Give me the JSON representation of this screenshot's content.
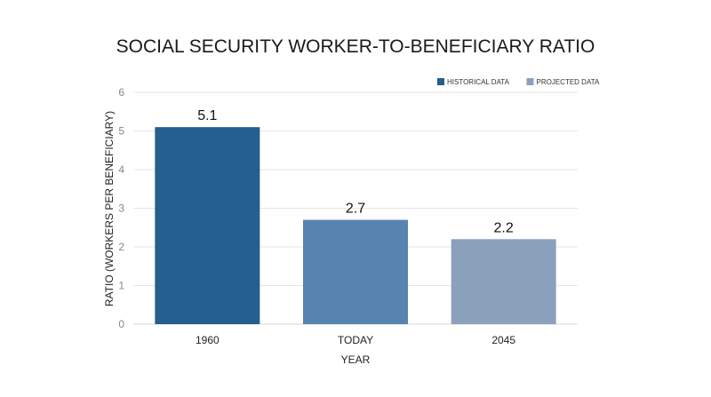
{
  "chart_data": {
    "type": "bar",
    "title": "SOCIAL SECURITY WORKER-TO-BENEFICIARY RATIO",
    "xlabel": "YEAR",
    "ylabel": "RATIO (WORKERS PER BENEFICIARY)",
    "categories": [
      "1960",
      "TODAY",
      "2045"
    ],
    "values": [
      5.1,
      2.7,
      2.2
    ],
    "value_labels": [
      "5.1",
      "2.7",
      "2.2"
    ],
    "bar_series": [
      "HISTORICAL DATA",
      "PROJECTED DATA",
      "PROJECTED DATA"
    ],
    "bar_colors": [
      "#245f8f",
      "#5783b0",
      "#8aa1bc"
    ],
    "ylim": [
      0,
      6
    ],
    "yticks": [
      0,
      1,
      2,
      3,
      4,
      5,
      6
    ],
    "grid": true,
    "legend_position": "top-right",
    "legend": [
      {
        "name": "HISTORICAL DATA",
        "color": "#245f8f"
      },
      {
        "name": "PROJECTED DATA",
        "color": "#8aa1bc"
      }
    ]
  }
}
